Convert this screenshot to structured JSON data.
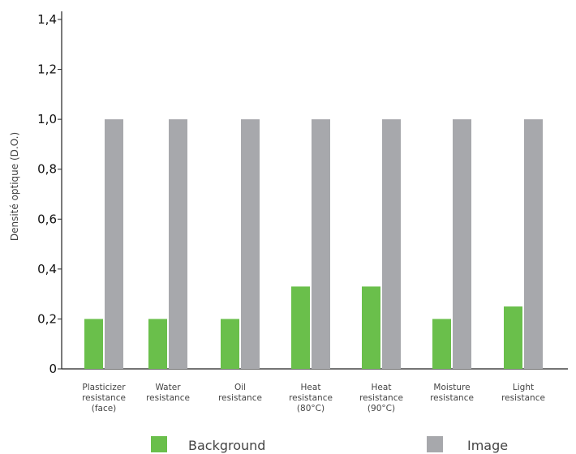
{
  "chart_data": {
    "type": "bar",
    "title": "",
    "xlabel": "",
    "ylabel": "Densité optique (D.O.)",
    "ylim": [
      0,
      1.4
    ],
    "yticks": [
      {
        "value": 0,
        "label": "0"
      },
      {
        "value": 0.2,
        "label": "0,2"
      },
      {
        "value": 0.4,
        "label": "0,4"
      },
      {
        "value": 0.6,
        "label": "0,6"
      },
      {
        "value": 0.8,
        "label": "0,8"
      },
      {
        "value": 1.0,
        "label": "1,0"
      },
      {
        "value": 1.2,
        "label": "1,2"
      },
      {
        "value": 1.4,
        "label": "1,4"
      }
    ],
    "categories": [
      [
        "Plasticizer",
        "resistance",
        "(face)"
      ],
      [
        "Water",
        "resistance"
      ],
      [
        "Oil",
        "resistance"
      ],
      [
        "Heat",
        "resistance",
        "(80°C)"
      ],
      [
        "Heat",
        "resistance",
        "(90°C)"
      ],
      [
        "Moisture",
        "resistance"
      ],
      [
        "Light",
        "resistance"
      ]
    ],
    "series": [
      {
        "name": "Background",
        "color": "#6abf4b",
        "values": [
          0.2,
          0.2,
          0.2,
          0.33,
          0.33,
          0.2,
          0.25
        ]
      },
      {
        "name": "Image",
        "color": "#a7a8ac",
        "values": [
          1.0,
          1.0,
          1.0,
          1.0,
          1.0,
          1.0,
          1.0
        ]
      }
    ],
    "grid": false,
    "legend": "bottom"
  }
}
